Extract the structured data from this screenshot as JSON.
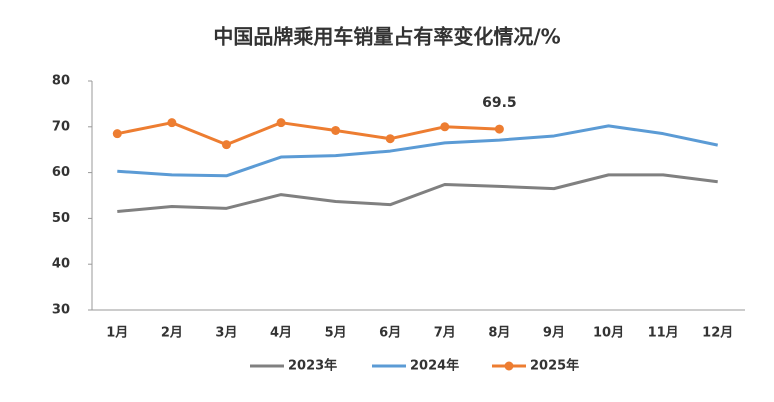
{
  "chart_data": {
    "type": "line",
    "title": "中国品牌乘用车销量占有率变化情况/%",
    "categories": [
      "1月",
      "2月",
      "3月",
      "4月",
      "5月",
      "6月",
      "7月",
      "8月",
      "9月",
      "10月",
      "11月",
      "12月"
    ],
    "series": [
      {
        "name": "2023年",
        "color": "#808080",
        "values": [
          51.5,
          52.6,
          52.2,
          55.2,
          53.7,
          53.0,
          57.4,
          57.0,
          56.5,
          59.5,
          59.5,
          58.0
        ]
      },
      {
        "name": "2024年",
        "color": "#5b9bd5",
        "values": [
          60.3,
          59.5,
          59.3,
          63.4,
          63.7,
          64.7,
          66.5,
          67.1,
          68.0,
          70.2,
          68.5,
          66.0
        ]
      },
      {
        "name": "2025年",
        "color": "#ed7d31",
        "marker": true,
        "values": [
          68.5,
          70.9,
          66.1,
          70.9,
          69.2,
          67.4,
          70.0,
          69.5,
          null,
          null,
          null,
          null
        ],
        "value_labels": [
          null,
          null,
          null,
          null,
          null,
          null,
          null,
          "69.5",
          null,
          null,
          null,
          null
        ]
      }
    ],
    "ylim": [
      30,
      80
    ],
    "yticks": [
      30,
      40,
      50,
      60,
      70,
      80
    ],
    "grid": false,
    "legend": "bottom"
  }
}
